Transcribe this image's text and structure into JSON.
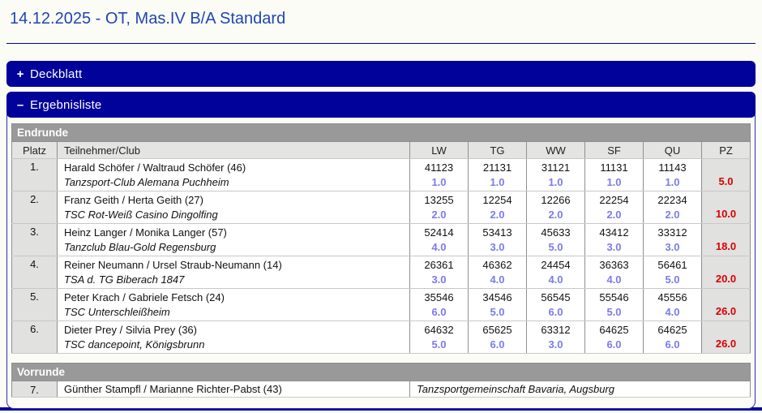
{
  "page": {
    "title": "14.12.2025 - OT, Mas.IV B/A Standard"
  },
  "colors": {
    "navy_bar": "#00029a",
    "title_blue": "#1e46b0",
    "panel_border": "#2b2bb4",
    "section_gray": "#999999",
    "cell_gray": "#e1e1df",
    "place_blue": "#7b7bea",
    "pz_red": "#d60000"
  },
  "bars": {
    "deckblatt": {
      "toggle": "+",
      "label": "Deckblatt"
    },
    "ergebnisliste": {
      "toggle": "–",
      "label": "Ergebnisliste"
    }
  },
  "endrunde": {
    "section_title": "Endrunde",
    "columns": [
      "Platz",
      "Teilnehmer/Club",
      "LW",
      "TG",
      "WW",
      "SF",
      "QU",
      "PZ"
    ],
    "rows": [
      {
        "platz": "1.",
        "name": "Harald Schöfer / Waltraud Schöfer (46)",
        "club": "Tanzsport-Club Alemana Puchheim",
        "scores": [
          {
            "marks": "41123",
            "place": "1.0"
          },
          {
            "marks": "21131",
            "place": "1.0"
          },
          {
            "marks": "31121",
            "place": "1.0"
          },
          {
            "marks": "11131",
            "place": "1.0"
          },
          {
            "marks": "11143",
            "place": "1.0"
          }
        ],
        "pz": "5.0"
      },
      {
        "platz": "2.",
        "name": "Franz Geith / Herta Geith (27)",
        "club": "TSC Rot-Weiß Casino Dingolfing",
        "scores": [
          {
            "marks": "13255",
            "place": "2.0"
          },
          {
            "marks": "12254",
            "place": "2.0"
          },
          {
            "marks": "12266",
            "place": "2.0"
          },
          {
            "marks": "22254",
            "place": "2.0"
          },
          {
            "marks": "22234",
            "place": "2.0"
          }
        ],
        "pz": "10.0"
      },
      {
        "platz": "3.",
        "name": "Heinz Langer / Monika Langer (57)",
        "club": "Tanzclub Blau-Gold Regensburg",
        "scores": [
          {
            "marks": "52414",
            "place": "4.0"
          },
          {
            "marks": "53413",
            "place": "3.0"
          },
          {
            "marks": "45633",
            "place": "5.0"
          },
          {
            "marks": "43412",
            "place": "3.0"
          },
          {
            "marks": "33312",
            "place": "3.0"
          }
        ],
        "pz": "18.0"
      },
      {
        "platz": "4.",
        "name": "Reiner Neumann / Ursel Straub-Neumann (14)",
        "club": "TSA d. TG Biberach 1847",
        "scores": [
          {
            "marks": "26361",
            "place": "3.0"
          },
          {
            "marks": "46362",
            "place": "4.0"
          },
          {
            "marks": "24454",
            "place": "4.0"
          },
          {
            "marks": "36363",
            "place": "4.0"
          },
          {
            "marks": "56461",
            "place": "5.0"
          }
        ],
        "pz": "20.0"
      },
      {
        "platz": "5.",
        "name": "Peter Krach / Gabriele Fetsch (24)",
        "club": "TSC Unterschleißheim",
        "scores": [
          {
            "marks": "35546",
            "place": "6.0"
          },
          {
            "marks": "34546",
            "place": "5.0"
          },
          {
            "marks": "56545",
            "place": "6.0"
          },
          {
            "marks": "55546",
            "place": "5.0"
          },
          {
            "marks": "45556",
            "place": "4.0"
          }
        ],
        "pz": "26.0"
      },
      {
        "platz": "6.",
        "name": "Dieter Prey / Silvia Prey (36)",
        "club": "TSC dancepoint, Königsbrunn",
        "scores": [
          {
            "marks": "64632",
            "place": "5.0"
          },
          {
            "marks": "65625",
            "place": "6.0"
          },
          {
            "marks": "63312",
            "place": "3.0"
          },
          {
            "marks": "64625",
            "place": "6.0"
          },
          {
            "marks": "64625",
            "place": "6.0"
          }
        ],
        "pz": "26.0"
      }
    ]
  },
  "vorrunde": {
    "section_title": "Vorrunde",
    "rows": [
      {
        "platz": "7.",
        "name": "Günther Stampfl / Marianne Richter-Pabst (43)",
        "club": "Tanzsportgemeinschaft Bavaria, Augsburg"
      }
    ]
  }
}
